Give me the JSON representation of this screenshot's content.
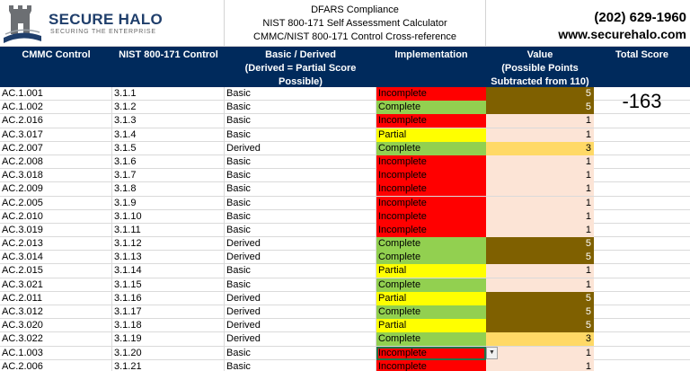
{
  "branding": {
    "company_name": "SECURE HALO",
    "tagline": "SECURING THE ENTERPRISE"
  },
  "title": {
    "line1": "DFARS Compliance",
    "line2": "NIST 800-171 Self Assessment Calculator",
    "line3": "CMMC/NIST 800-171 Control Cross-reference"
  },
  "contact": {
    "phone": "(202) 629-1960",
    "website": "www.securehalo.com"
  },
  "headers": {
    "cmmc": "CMMC Control",
    "nist": "NIST 800-171 Control",
    "basic_derived": "Basic / Derived",
    "basic_derived_note": "(Derived = Partial Score Possible)",
    "implementation": "Implementation",
    "value": "Value",
    "value_note1": "(Possible Points",
    "value_note2": "Subtracted from 110)",
    "total": "Total Score"
  },
  "total_score": "-163",
  "colors": {
    "header_bg": "#002a5c",
    "incomplete": "#ff0000",
    "complete": "#92d050",
    "partial": "#ffff00",
    "value_5": "#7f6000",
    "value_3": "#ffd966",
    "value_1": "#fce4d6"
  },
  "rows": [
    {
      "cmmc": "AC.1.001",
      "nist": "3.1.1",
      "type": "Basic",
      "impl": "Incomplete",
      "value": "5"
    },
    {
      "cmmc": "AC.1.002",
      "nist": "3.1.2",
      "type": "Basic",
      "impl": "Complete",
      "value": "5"
    },
    {
      "cmmc": "AC.2.016",
      "nist": "3.1.3",
      "type": "Basic",
      "impl": "Incomplete",
      "value": "1"
    },
    {
      "cmmc": "AC.3.017",
      "nist": "3.1.4",
      "type": "Basic",
      "impl": "Partial",
      "value": "1"
    },
    {
      "cmmc": "AC.2.007",
      "nist": "3.1.5",
      "type": "Derived",
      "impl": "Complete",
      "value": "3"
    },
    {
      "cmmc": "AC.2.008",
      "nist": "3.1.6",
      "type": "Basic",
      "impl": "Incomplete",
      "value": "1"
    },
    {
      "cmmc": "AC.3.018",
      "nist": "3.1.7",
      "type": "Basic",
      "impl": "Incomplete",
      "value": "1"
    },
    {
      "cmmc": "AC.2.009",
      "nist": "3.1.8",
      "type": "Basic",
      "impl": "Incomplete",
      "value": "1"
    },
    {
      "cmmc": "AC.2.005",
      "nist": "3.1.9",
      "type": "Basic",
      "impl": "Incomplete",
      "value": "1"
    },
    {
      "cmmc": "AC.2.010",
      "nist": "3.1.10",
      "type": "Basic",
      "impl": "Incomplete",
      "value": "1"
    },
    {
      "cmmc": "AC.3.019",
      "nist": "3.1.11",
      "type": "Basic",
      "impl": "Incomplete",
      "value": "1"
    },
    {
      "cmmc": "AC.2.013",
      "nist": "3.1.12",
      "type": "Derived",
      "impl": "Complete",
      "value": "5"
    },
    {
      "cmmc": "AC.3.014",
      "nist": "3.1.13",
      "type": "Derived",
      "impl": "Complete",
      "value": "5"
    },
    {
      "cmmc": "AC.2.015",
      "nist": "3.1.14",
      "type": "Basic",
      "impl": "Partial",
      "value": "1"
    },
    {
      "cmmc": "AC.3.021",
      "nist": "3.1.15",
      "type": "Basic",
      "impl": "Complete",
      "value": "1"
    },
    {
      "cmmc": "AC.2.011",
      "nist": "3.1.16",
      "type": "Derived",
      "impl": "Partial",
      "value": "5"
    },
    {
      "cmmc": "AC.3.012",
      "nist": "3.1.17",
      "type": "Derived",
      "impl": "Complete",
      "value": "5"
    },
    {
      "cmmc": "AC.3.020",
      "nist": "3.1.18",
      "type": "Derived",
      "impl": "Partial",
      "value": "5"
    },
    {
      "cmmc": "AC.3.022",
      "nist": "3.1.19",
      "type": "Derived",
      "impl": "Complete",
      "value": "3"
    },
    {
      "cmmc": "AC.1.003",
      "nist": "3.1.20",
      "type": "Basic",
      "impl": "Incomplete",
      "value": "1",
      "selected": true
    },
    {
      "cmmc": "AC.2.006",
      "nist": "3.1.21",
      "type": "Basic",
      "impl": "Incomplete",
      "value": "1"
    }
  ]
}
